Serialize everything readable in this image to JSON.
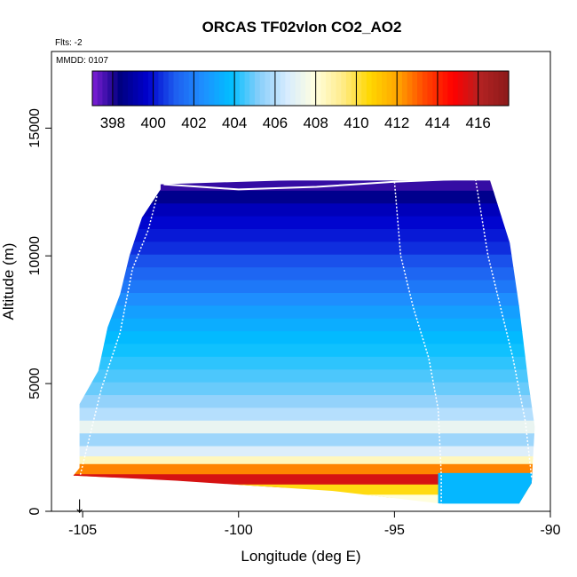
{
  "chart_data": {
    "type": "heatmap",
    "title": "ORCAS TF02vlon CO2_AO2",
    "top_left_note": "Flts: -2",
    "inner_note": "MMDD: 0107",
    "xlabel": "Longitude (deg E)",
    "ylabel": "Altitude (m)",
    "xlim": [
      -106,
      -90
    ],
    "ylim": [
      0,
      18000
    ],
    "xticks": [
      -105,
      -100,
      -95,
      -90
    ],
    "yticks": [
      0,
      5000,
      10000,
      15000
    ],
    "grid": false,
    "colorbar": {
      "placement": "top-inside",
      "min": 397,
      "max": 417.5,
      "ticks": [
        398,
        400,
        402,
        404,
        406,
        408,
        410,
        412,
        414,
        416
      ],
      "colors": [
        "#7f1fd6",
        "#000080",
        "#0000cd",
        "#1e5ff0",
        "#1e90ff",
        "#00bfff",
        "#87cefa",
        "#d6ebff",
        "#ffffe0",
        "#ffec8b",
        "#ffd700",
        "#ffa500",
        "#ff4500",
        "#ff0000",
        "#b22222",
        "#8b1a1a"
      ]
    },
    "marker": {
      "label": "↓",
      "x": -105.1
    },
    "curtain": {
      "outline_left": [
        [
          -105.1,
          1700
        ],
        [
          -105.1,
          4200
        ],
        [
          -104.5,
          5500
        ],
        [
          -104.2,
          7200
        ],
        [
          -103.8,
          8500
        ],
        [
          -103.5,
          10000
        ],
        [
          -103.1,
          11500
        ],
        [
          -102.5,
          12600
        ]
      ],
      "outline_right": [
        [
          -102.5,
          12800
        ],
        [
          -92.0,
          13200
        ],
        [
          -91.3,
          10500
        ],
        [
          -91.0,
          8000
        ],
        [
          -90.7,
          5000
        ],
        [
          -90.5,
          3300
        ],
        [
          -90.6,
          1100
        ],
        [
          -91.0,
          300
        ]
      ],
      "bottom": [
        [
          -93.5,
          300
        ],
        [
          -97.0,
          800
        ],
        [
          -102.0,
          1200
        ],
        [
          -105.3,
          1400
        ]
      ],
      "layers": [
        {
          "alt": 12700,
          "co2": 397.8
        },
        {
          "alt": 12300,
          "co2": 398.6
        },
        {
          "alt": 11800,
          "co2": 399.4
        },
        {
          "alt": 11300,
          "co2": 399.8
        },
        {
          "alt": 10800,
          "co2": 400.1
        },
        {
          "alt": 10300,
          "co2": 400.4
        },
        {
          "alt": 9800,
          "co2": 400.9
        },
        {
          "alt": 9300,
          "co2": 401.3
        },
        {
          "alt": 8800,
          "co2": 401.8
        },
        {
          "alt": 8300,
          "co2": 402.4
        },
        {
          "alt": 7800,
          "co2": 402.9
        },
        {
          "alt": 7300,
          "co2": 403.3
        },
        {
          "alt": 6800,
          "co2": 403.7
        },
        {
          "alt": 6300,
          "co2": 404.0
        },
        {
          "alt": 5800,
          "co2": 404.3
        },
        {
          "alt": 5300,
          "co2": 404.6
        },
        {
          "alt": 4800,
          "co2": 404.9
        },
        {
          "alt": 4300,
          "co2": 405.4
        },
        {
          "alt": 3800,
          "co2": 406.0
        },
        {
          "alt": 3300,
          "co2": 407.2
        },
        {
          "alt": 2800,
          "co2": 405.6
        },
        {
          "alt": 2300,
          "co2": 406.8
        },
        {
          "alt": 1900,
          "co2": 408.5
        },
        {
          "alt": 1600,
          "co2": 412.5
        },
        {
          "alt": 1200,
          "co2": 415.5
        },
        {
          "alt": 800,
          "co2": 410.5
        },
        {
          "alt": 400,
          "co2": 408.0
        }
      ],
      "flight_track_left": [
        [
          -105.1,
          1300
        ],
        [
          -104.4,
          4800
        ],
        [
          -103.8,
          7000
        ],
        [
          -103.4,
          9500
        ],
        [
          -102.9,
          11000
        ],
        [
          -102.6,
          12400
        ]
      ],
      "flight_track_top": [
        [
          -102.4,
          12800
        ],
        [
          -100.0,
          12600
        ],
        [
          -97.5,
          12700
        ],
        [
          -95.0,
          12900
        ],
        [
          -93.0,
          13000
        ]
      ],
      "flight_track_right1": [
        [
          -95.0,
          12900
        ],
        [
          -94.8,
          10000
        ],
        [
          -94.4,
          8000
        ],
        [
          -93.9,
          6000
        ],
        [
          -93.6,
          4000
        ],
        [
          -93.5,
          1400
        ],
        [
          -93.5,
          200
        ]
      ],
      "flight_track_right2": [
        [
          -92.4,
          13000
        ],
        [
          -92.0,
          10000
        ],
        [
          -91.6,
          8000
        ],
        [
          -91.2,
          6000
        ],
        [
          -90.8,
          3500
        ],
        [
          -90.6,
          1300
        ]
      ]
    }
  }
}
